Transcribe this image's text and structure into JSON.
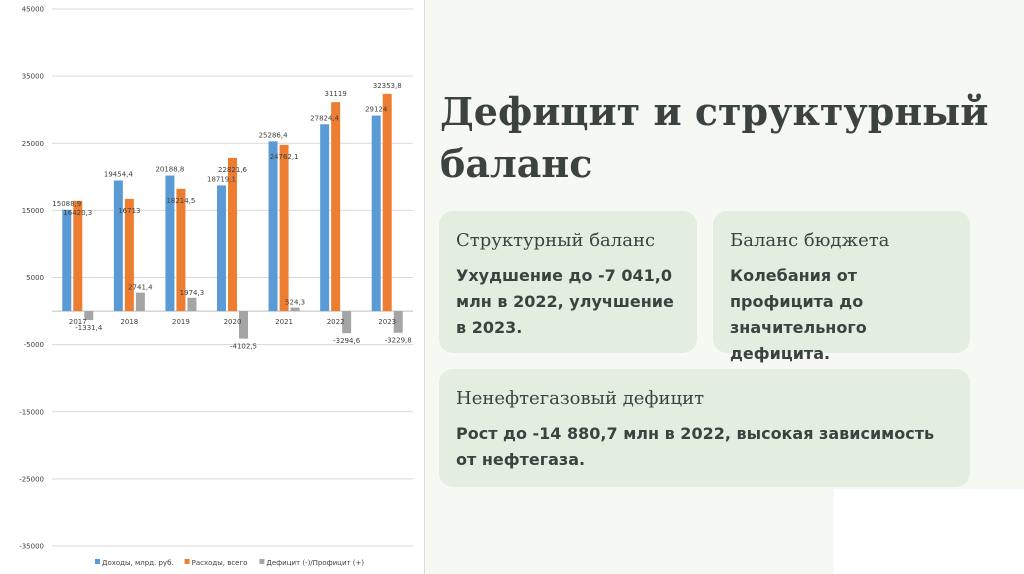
{
  "slide": {
    "title": "Дефицит и структурный баланс"
  },
  "cards": {
    "structural": {
      "heading": "Структурный баланс",
      "text": "Ухудшение до -7 041,0 млн в 2022, улучшение в 2023."
    },
    "budget": {
      "heading": "Баланс бюджета",
      "text": "Колебания от профицита до значительного дефицита."
    },
    "nonoil": {
      "heading": "Ненефтегазовый дефицит",
      "text": "Рост до -14 880,7 млн в 2022, высокая зависимость от нефтегаза."
    }
  },
  "chart_data": {
    "type": "bar",
    "categories": [
      "2017",
      "2018",
      "2019",
      "2020",
      "2021",
      "2022",
      "2023"
    ],
    "series": [
      {
        "name": "Доходы, млрд. руб.",
        "color": "#5b9bd5",
        "values": [
          15088.9,
          19454.4,
          20188.8,
          18719.1,
          25286.4,
          27824.4,
          29124
        ],
        "labels": [
          "15088,9",
          "19454,4",
          "20188,8",
          "18719,1",
          "25286,4",
          "27824,4",
          "29124"
        ]
      },
      {
        "name": "Расходы, всего",
        "color": "#ed7d31",
        "values": [
          16420.3,
          16713,
          18214.5,
          22821.6,
          24762.1,
          31119,
          32353.8
        ],
        "labels": [
          "16420,3",
          "16713",
          "18214,5",
          "22821,6",
          "24762,1",
          "31119",
          "32353,8"
        ]
      },
      {
        "name": "Дефицит (-)/Профицит (+)",
        "color": "#a5a5a5",
        "values": [
          -1331.4,
          2741.4,
          1974.3,
          -4102.5,
          524.3,
          -3294.6,
          -3229.8
        ],
        "labels": [
          "-1331,4",
          "2741,4",
          "1974,3",
          "-4102,5",
          "524,3",
          "-3294,6",
          "-3229,8"
        ]
      }
    ],
    "y_ticks": [
      "45000",
      "35000",
      "25000",
      "15000",
      "5000",
      "-5000",
      "-15000",
      "-25000",
      "-35000"
    ],
    "ylim": [
      -35000,
      45000
    ],
    "grid": true,
    "legend": "bottom"
  }
}
